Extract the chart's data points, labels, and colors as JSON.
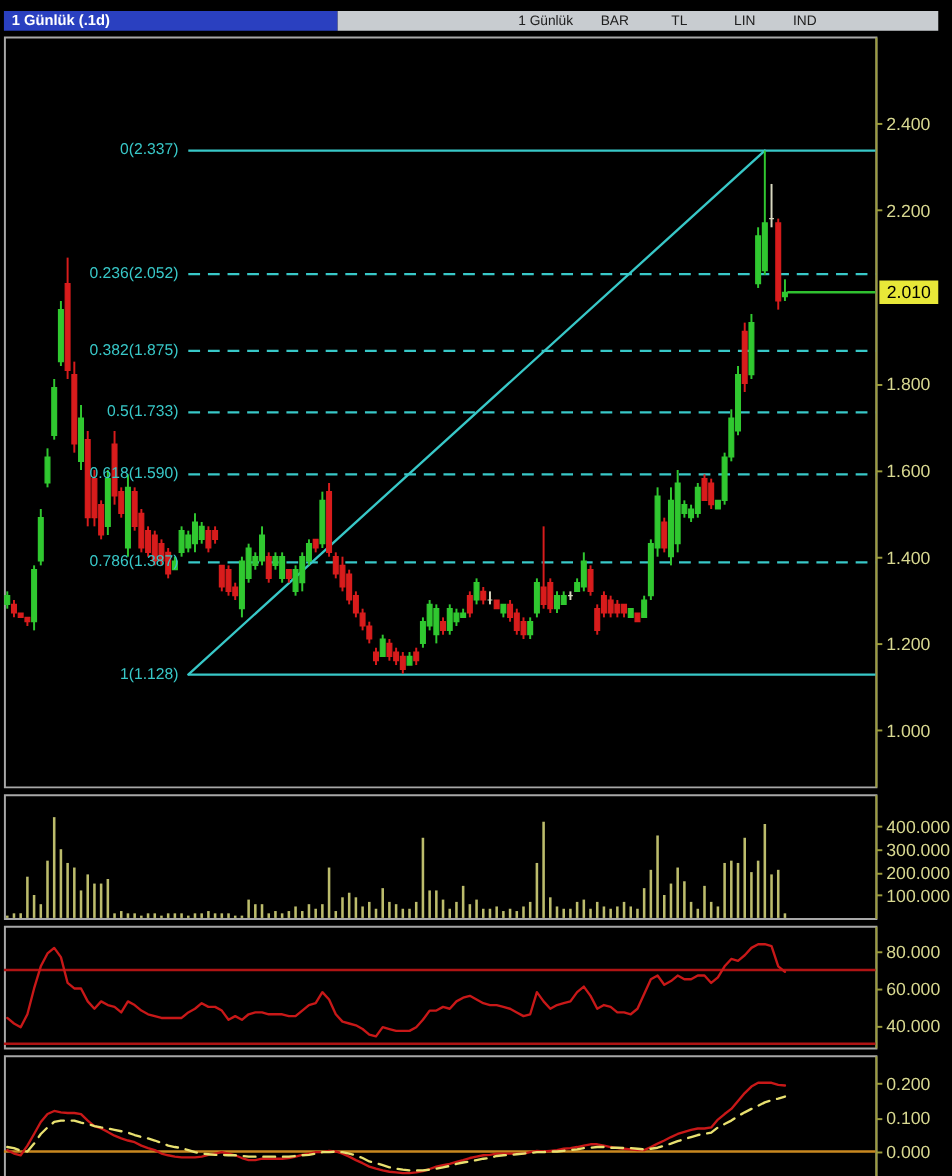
{
  "chart_data": [
    {
      "type": "candlestick",
      "title": "1 Günlük (.1d)",
      "annotations": [
        "1 Günlük",
        "BAR",
        "TL",
        "LIN",
        "IND"
      ],
      "tick_labels": "y",
      "ylim": [
        0.87,
        2.6
      ],
      "yticks": [
        {
          "value": 1,
          "label": "1.000"
        },
        {
          "value": 1.2,
          "label": "1.200"
        },
        {
          "value": 1.4,
          "label": "1.400"
        },
        {
          "value": 1.6,
          "label": "1.600"
        },
        {
          "value": 1.8,
          "label": "1.800"
        },
        {
          "value": 2.2,
          "label": "2.200"
        },
        {
          "value": 2.4,
          "label": "2.400"
        }
      ],
      "categories": [
        null,
        null,
        null,
        null,
        null,
        null,
        null,
        null,
        null,
        null,
        null,
        null,
        null,
        null,
        null,
        null,
        null,
        null,
        null,
        null,
        null,
        null,
        null,
        null,
        null,
        null,
        null,
        null,
        null,
        null,
        null,
        null,
        null,
        null,
        null,
        null,
        null,
        null,
        null,
        null,
        null,
        null,
        null,
        null,
        null,
        null,
        null,
        null,
        null,
        null,
        null,
        null,
        null,
        null,
        null,
        null,
        null,
        null,
        null,
        null,
        null,
        null,
        null,
        null,
        null,
        null,
        null,
        null,
        null,
        null,
        null,
        null,
        null,
        null,
        null,
        null,
        null,
        null,
        null,
        null,
        null,
        null,
        null,
        null,
        null,
        null,
        null,
        null,
        null,
        null,
        null,
        null,
        null,
        null,
        null,
        null,
        null,
        null,
        null,
        null,
        null,
        null,
        null,
        null,
        null,
        null,
        null,
        null,
        null,
        null,
        null,
        null,
        null,
        null,
        null,
        null,
        null,
        null,
        null,
        null,
        null,
        null,
        null,
        null,
        null,
        null,
        null,
        null,
        null,
        null
      ],
      "ohlc": [
        [
          1.29,
          1.32,
          1.28,
          1.31
        ],
        [
          1.29,
          1.3,
          1.26,
          1.27
        ],
        [
          1.27,
          1.27,
          1.26,
          1.26
        ],
        [
          1.26,
          1.26,
          1.24,
          1.25
        ],
        [
          1.25,
          1.38,
          1.23,
          1.37
        ],
        [
          1.39,
          1.51,
          1.38,
          1.49
        ],
        [
          1.57,
          1.65,
          1.56,
          1.63
        ],
        [
          1.68,
          1.81,
          1.67,
          1.79
        ],
        [
          1.85,
          1.99,
          1.84,
          1.97
        ],
        [
          2.03,
          2.09,
          1.81,
          1.83
        ],
        [
          1.82,
          1.85,
          1.64,
          1.66
        ],
        [
          1.62,
          1.75,
          1.6,
          1.72
        ],
        [
          1.67,
          1.69,
          1.47,
          1.49
        ],
        [
          1.58,
          1.6,
          1.47,
          1.49
        ],
        [
          1.52,
          1.53,
          1.44,
          1.45
        ],
        [
          1.47,
          1.6,
          1.45,
          1.58
        ],
        [
          1.66,
          1.69,
          1.52,
          1.54
        ],
        [
          1.55,
          1.56,
          1.49,
          1.5
        ],
        [
          1.42,
          1.59,
          1.4,
          1.56
        ],
        [
          1.55,
          1.56,
          1.46,
          1.47
        ],
        [
          1.5,
          1.51,
          1.41,
          1.42
        ],
        [
          1.46,
          1.47,
          1.4,
          1.41
        ],
        [
          1.45,
          1.46,
          1.38,
          1.39
        ],
        [
          1.43,
          1.44,
          1.38,
          1.39
        ],
        [
          1.41,
          1.42,
          1.35,
          1.36
        ],
        [
          1.37,
          1.4,
          1.37,
          1.39
        ],
        [
          1.41,
          1.47,
          1.4,
          1.46
        ],
        [
          1.42,
          1.46,
          1.41,
          1.45
        ],
        [
          1.43,
          1.5,
          1.41,
          1.48
        ],
        [
          1.44,
          1.48,
          1.43,
          1.47
        ],
        [
          1.46,
          1.47,
          1.41,
          1.42
        ],
        [
          1.46,
          1.47,
          1.43,
          1.44
        ],
        [
          1.38,
          1.38,
          1.32,
          1.33
        ],
        [
          1.37,
          1.38,
          1.31,
          1.32
        ],
        [
          1.33,
          1.34,
          1.3,
          1.31
        ],
        [
          1.28,
          1.4,
          1.26,
          1.39
        ],
        [
          1.35,
          1.43,
          1.34,
          1.42
        ],
        [
          1.38,
          1.41,
          1.37,
          1.4
        ],
        [
          1.39,
          1.47,
          1.38,
          1.45
        ],
        [
          1.4,
          1.41,
          1.34,
          1.35
        ],
        [
          1.38,
          1.41,
          1.37,
          1.4
        ],
        [
          1.35,
          1.41,
          1.34,
          1.4
        ],
        [
          1.37,
          1.37,
          1.34,
          1.35
        ],
        [
          1.32,
          1.38,
          1.31,
          1.37
        ],
        [
          1.34,
          1.41,
          1.32,
          1.4
        ],
        [
          1.39,
          1.44,
          1.38,
          1.43
        ],
        [
          1.44,
          1.44,
          1.41,
          1.42
        ],
        [
          1.43,
          1.55,
          1.42,
          1.53
        ],
        [
          1.55,
          1.57,
          1.4,
          1.41
        ],
        [
          1.4,
          1.41,
          1.35,
          1.36
        ],
        [
          1.38,
          1.4,
          1.32,
          1.33
        ],
        [
          1.36,
          1.37,
          1.29,
          1.3
        ],
        [
          1.31,
          1.32,
          1.26,
          1.27
        ],
        [
          1.27,
          1.28,
          1.23,
          1.24
        ],
        [
          1.24,
          1.25,
          1.2,
          1.21
        ],
        [
          1.18,
          1.19,
          1.15,
          1.16
        ],
        [
          1.17,
          1.22,
          1.17,
          1.21
        ],
        [
          1.2,
          1.21,
          1.16,
          1.17
        ],
        [
          1.18,
          1.19,
          1.15,
          1.16
        ],
        [
          1.17,
          1.18,
          1.13,
          1.14
        ],
        [
          1.15,
          1.18,
          1.15,
          1.17
        ],
        [
          1.18,
          1.19,
          1.15,
          1.16
        ],
        [
          1.2,
          1.26,
          1.19,
          1.25
        ],
        [
          1.24,
          1.3,
          1.23,
          1.29
        ],
        [
          1.22,
          1.29,
          1.2,
          1.28
        ],
        [
          1.25,
          1.26,
          1.22,
          1.23
        ],
        [
          1.23,
          1.29,
          1.22,
          1.28
        ],
        [
          1.25,
          1.28,
          1.24,
          1.27
        ],
        [
          1.26,
          1.28,
          1.26,
          1.27
        ],
        [
          1.31,
          1.32,
          1.26,
          1.27
        ],
        [
          1.3,
          1.35,
          1.29,
          1.34
        ],
        [
          1.32,
          1.33,
          1.29,
          1.3
        ],
        [
          1.3,
          1.32,
          1.29,
          1.3
        ],
        [
          1.3,
          1.3,
          1.28,
          1.28
        ],
        [
          1.27,
          1.29,
          1.26,
          1.29
        ],
        [
          1.29,
          1.3,
          1.25,
          1.26
        ],
        [
          1.27,
          1.28,
          1.22,
          1.23
        ],
        [
          1.25,
          1.26,
          1.21,
          1.22
        ],
        [
          1.22,
          1.26,
          1.21,
          1.25
        ],
        [
          1.27,
          1.35,
          1.26,
          1.34
        ],
        [
          1.33,
          1.47,
          1.28,
          1.29
        ],
        [
          1.34,
          1.35,
          1.27,
          1.28
        ],
        [
          1.28,
          1.32,
          1.27,
          1.31
        ],
        [
          1.29,
          1.32,
          1.29,
          1.31
        ],
        [
          1.31,
          1.32,
          1.3,
          1.31
        ],
        [
          1.32,
          1.35,
          1.32,
          1.34
        ],
        [
          1.33,
          1.41,
          1.32,
          1.39
        ],
        [
          1.37,
          1.38,
          1.31,
          1.32
        ],
        [
          1.28,
          1.29,
          1.22,
          1.23
        ],
        [
          1.31,
          1.32,
          1.26,
          1.27
        ],
        [
          1.3,
          1.31,
          1.26,
          1.27
        ],
        [
          1.29,
          1.3,
          1.26,
          1.27
        ],
        [
          1.29,
          1.29,
          1.26,
          1.27
        ],
        [
          1.26,
          1.28,
          1.26,
          1.28
        ],
        [
          1.27,
          1.27,
          1.25,
          1.25
        ],
        [
          1.26,
          1.31,
          1.26,
          1.3
        ],
        [
          1.31,
          1.44,
          1.3,
          1.43
        ],
        [
          1.42,
          1.56,
          1.4,
          1.54
        ],
        [
          1.48,
          1.49,
          1.41,
          1.42
        ],
        [
          1.4,
          1.56,
          1.38,
          1.53
        ],
        [
          1.43,
          1.6,
          1.41,
          1.57
        ],
        [
          1.5,
          1.53,
          1.49,
          1.52
        ],
        [
          1.49,
          1.52,
          1.48,
          1.51
        ],
        [
          1.5,
          1.57,
          1.49,
          1.56
        ],
        [
          1.58,
          1.59,
          1.53,
          1.53
        ],
        [
          1.57,
          1.58,
          1.51,
          1.52
        ],
        [
          1.51,
          1.53,
          1.51,
          1.53
        ],
        [
          1.53,
          1.64,
          1.52,
          1.63
        ],
        [
          1.63,
          1.74,
          1.62,
          1.72
        ],
        [
          1.69,
          1.84,
          1.68,
          1.82
        ],
        [
          1.92,
          1.94,
          1.78,
          1.8
        ],
        [
          1.82,
          1.96,
          1.81,
          1.94
        ],
        [
          2.03,
          2.16,
          2.02,
          2.14
        ],
        [
          2.06,
          2.337,
          2.05,
          2.17
        ],
        [
          2.18,
          2.26,
          2.16,
          2.18
        ],
        [
          2.17,
          2.18,
          1.97,
          1.99
        ],
        [
          2.0,
          2.04,
          1.99,
          2.01
        ],
        null,
        null,
        null,
        null,
        null,
        null,
        null,
        null,
        null,
        null,
        null,
        null,
        null
      ],
      "colors": [
        "#30c830",
        "#d81c1c",
        "#d81c1c",
        "#d81c1c",
        "#30c830",
        "#30c830",
        "#30c830",
        "#30c830",
        "#30c830",
        "#d81c1c",
        "#d81c1c",
        "#30c830",
        "#d81c1c",
        "#d81c1c",
        "#d81c1c",
        "#30c830",
        "#d81c1c",
        "#d81c1c",
        "#30c830",
        "#d81c1c",
        "#d81c1c",
        "#d81c1c",
        "#d81c1c",
        "#d81c1c",
        "#d81c1c",
        "#30c830",
        "#30c830",
        "#30c830",
        "#30c830",
        "#30c830",
        "#d81c1c",
        "#d81c1c",
        "#d81c1c",
        "#d81c1c",
        "#d81c1c",
        "#30c830",
        "#30c830",
        "#30c830",
        "#30c830",
        "#d81c1c",
        "#30c830",
        "#30c830",
        "#d81c1c",
        "#30c830",
        "#30c830",
        "#30c830",
        "#d81c1c",
        "#30c830",
        "#d81c1c",
        "#d81c1c",
        "#d81c1c",
        "#d81c1c",
        "#d81c1c",
        "#d81c1c",
        "#d81c1c",
        "#d81c1c",
        "#30c830",
        "#d81c1c",
        "#d81c1c",
        "#d81c1c",
        "#30c830",
        "#d81c1c",
        "#30c830",
        "#30c830",
        "#30c830",
        "#d81c1c",
        "#30c830",
        "#30c830",
        "#30c830",
        "#d81c1c",
        "#30c830",
        "#d81c1c",
        "#d8d8c0",
        "#d81c1c",
        "#30c830",
        "#d81c1c",
        "#d81c1c",
        "#d81c1c",
        "#30c830",
        "#30c830",
        "#d81c1c",
        "#d81c1c",
        "#30c830",
        "#30c830",
        "#d8d8c0",
        "#30c830",
        "#30c830",
        "#d81c1c",
        "#d81c1c",
        "#d81c1c",
        "#d81c1c",
        "#d81c1c",
        "#d81c1c",
        "#30c830",
        "#d81c1c",
        "#30c830",
        "#30c830",
        "#30c830",
        "#d81c1c",
        "#30c830",
        "#30c830",
        "#30c830",
        "#30c830",
        "#30c830",
        "#d81c1c",
        "#d81c1c",
        "#30c830",
        "#30c830",
        "#30c830",
        "#30c830",
        "#d81c1c",
        "#30c830",
        "#30c830",
        "#30c830",
        "#d8d8c0",
        "#d81c1c",
        "#30c830",
        null,
        null,
        null,
        null,
        null,
        null,
        null,
        null,
        null,
        null,
        null,
        null,
        null
      ],
      "series": [
        {
          "type": "line",
          "color": "#38c8c8",
          "values": [
            null,
            null,
            null,
            null,
            null,
            null,
            null,
            null,
            null,
            null,
            null,
            null,
            null,
            null,
            null,
            null,
            null,
            null,
            null,
            null,
            null,
            null,
            null,
            null,
            null,
            null,
            null,
            1.128,
            null,
            null,
            null,
            null,
            null,
            null,
            null,
            null,
            null,
            null,
            null,
            null,
            null,
            null,
            null,
            null,
            null,
            null,
            null,
            null,
            null,
            null,
            null,
            null,
            null,
            null,
            null,
            null,
            null,
            null,
            null,
            null,
            null,
            null,
            null,
            null,
            null,
            null,
            null,
            null,
            null,
            null,
            null,
            null,
            null,
            null,
            null,
            null,
            null,
            null,
            null,
            null,
            null,
            null,
            null,
            null,
            null,
            null,
            null,
            null,
            null,
            null,
            null,
            null,
            null,
            null,
            null,
            null,
            null,
            null,
            null,
            null,
            null,
            null,
            null,
            null,
            null,
            null,
            null,
            null,
            null,
            null,
            null,
            null,
            null,
            2.337,
            null,
            null,
            null,
            null,
            null,
            null,
            null,
            null,
            null,
            null,
            null,
            null,
            null,
            null,
            null,
            null
          ]
        }
      ],
      "ref_lines": [
        {
          "axis": "y",
          "value": 2.337,
          "label": "0(2.337)",
          "color": "#38c8c8",
          "line_style": "solid"
        },
        {
          "axis": "y",
          "value": 2.052,
          "label": "0.236(2.052)",
          "color": "#38c8c8",
          "line_style": "dashed"
        },
        {
          "axis": "y",
          "value": 1.875,
          "label": "0.382(1.875)",
          "color": "#38c8c8",
          "line_style": "dashed"
        },
        {
          "axis": "y",
          "value": 1.733,
          "label": "0.5(1.733)",
          "color": "#38c8c8",
          "line_style": "dashed"
        },
        {
          "axis": "y",
          "value": 1.59,
          "label": "0.618(1.590)",
          "color": "#38c8c8",
          "line_style": "dashed"
        },
        {
          "axis": "y",
          "value": 1.387,
          "label": "0.786(1.387)",
          "color": "#38c8c8",
          "line_style": "dashed"
        },
        {
          "axis": "y",
          "value": 1.128,
          "label": "1(1.128)",
          "color": "#38c8c8",
          "line_style": "solid"
        },
        {
          "axis": "y",
          "value": 2.01,
          "label": "2.010",
          "color": "#30c030",
          "line_style": "solid"
        }
      ]
    },
    {
      "type": "bar",
      "tick_labels": "y",
      "color": "#bcbc6c",
      "ylim": [
        0,
        540
      ],
      "yticks": [
        {
          "value": 100,
          "label": "100.000"
        },
        {
          "value": 200,
          "label": "200.000"
        },
        {
          "value": 300,
          "label": "300.000"
        },
        {
          "value": 400,
          "label": "400.000"
        }
      ],
      "categories": [
        null,
        null,
        null,
        null,
        null,
        null,
        null,
        null,
        null,
        null,
        null,
        null,
        null,
        null,
        null,
        null,
        null,
        null,
        null,
        null,
        null,
        null,
        null,
        null,
        null,
        null,
        null,
        null,
        null,
        null,
        null,
        null,
        null,
        null,
        null,
        null,
        null,
        null,
        null,
        null,
        null,
        null,
        null,
        null,
        null,
        null,
        null,
        null,
        null,
        null,
        null,
        null,
        null,
        null,
        null,
        null,
        null,
        null,
        null,
        null,
        null,
        null,
        null,
        null,
        null,
        null,
        null,
        null,
        null,
        null,
        null,
        null,
        null,
        null,
        null,
        null,
        null,
        null,
        null,
        null,
        null,
        null,
        null,
        null,
        null,
        null,
        null,
        null,
        null,
        null,
        null,
        null,
        null,
        null,
        null,
        null,
        null,
        null,
        null,
        null,
        null,
        null,
        null,
        null,
        null,
        null,
        null,
        null,
        null,
        null,
        null,
        null,
        null,
        null,
        null,
        null,
        null,
        null,
        null,
        null,
        null,
        null,
        null,
        null,
        null,
        null,
        null,
        null,
        null,
        null
      ],
      "values": [
        10,
        20,
        20,
        180,
        100,
        60,
        250,
        440,
        300,
        240,
        220,
        120,
        190,
        150,
        150,
        170,
        20,
        30,
        20,
        20,
        10,
        20,
        20,
        10,
        20,
        20,
        20,
        10,
        20,
        20,
        30,
        20,
        20,
        20,
        10,
        10,
        80,
        60,
        60,
        20,
        30,
        20,
        30,
        50,
        30,
        60,
        40,
        60,
        220,
        30,
        90,
        110,
        90,
        50,
        70,
        40,
        130,
        70,
        60,
        40,
        40,
        70,
        350,
        120,
        120,
        80,
        40,
        70,
        140,
        60,
        80,
        40,
        40,
        50,
        30,
        40,
        30,
        50,
        70,
        240,
        420,
        90,
        50,
        40,
        40,
        70,
        80,
        40,
        70,
        50,
        40,
        50,
        70,
        50,
        40,
        130,
        210,
        360,
        100,
        150,
        220,
        160,
        70,
        40,
        140,
        70,
        50,
        240,
        250,
        240,
        350,
        200,
        250,
        410,
        190,
        210,
        20,
        null,
        null,
        null,
        null,
        null,
        null,
        null,
        null,
        null,
        null,
        null,
        null,
        null
      ]
    },
    {
      "type": "line",
      "tick_labels": "y",
      "color": "#c81818",
      "ylim": [
        28,
        94
      ],
      "yticks": [
        {
          "value": 40,
          "label": "40.000"
        },
        {
          "value": 60,
          "label": "60.000"
        },
        {
          "value": 80,
          "label": "80.000"
        }
      ],
      "categories": [
        null,
        null,
        null,
        null,
        null,
        null,
        null,
        null,
        null,
        null,
        null,
        null,
        null,
        null,
        null,
        null,
        null,
        null,
        null,
        null,
        null,
        null,
        null,
        null,
        null,
        null,
        null,
        null,
        null,
        null,
        null,
        null,
        null,
        null,
        null,
        null,
        null,
        null,
        null,
        null,
        null,
        null,
        null,
        null,
        null,
        null,
        null,
        null,
        null,
        null,
        null,
        null,
        null,
        null,
        null,
        null,
        null,
        null,
        null,
        null,
        null,
        null,
        null,
        null,
        null,
        null,
        null,
        null,
        null,
        null,
        null,
        null,
        null,
        null,
        null,
        null,
        null,
        null,
        null,
        null,
        null,
        null,
        null,
        null,
        null,
        null,
        null,
        null,
        null,
        null,
        null,
        null,
        null,
        null,
        null,
        null,
        null,
        null,
        null,
        null,
        null,
        null,
        null,
        null,
        null,
        null,
        null,
        null,
        null,
        null,
        null,
        null,
        null,
        null,
        null,
        null,
        null,
        null,
        null,
        null,
        null,
        null,
        null,
        null,
        null,
        null,
        null,
        null,
        null,
        null
      ],
      "values": [
        44,
        41,
        39,
        46,
        60,
        72,
        79,
        82,
        77,
        63,
        60,
        60,
        53,
        49,
        53,
        51,
        50,
        47,
        53,
        51,
        48,
        46,
        45,
        44,
        44,
        44,
        44,
        47,
        49,
        52,
        50,
        50,
        48,
        43,
        45,
        43,
        46,
        47,
        47,
        46,
        46,
        46,
        45,
        45,
        48,
        51,
        52,
        58,
        54,
        46,
        42,
        41,
        40,
        38,
        35,
        34,
        39,
        38,
        37,
        37,
        37,
        39,
        43,
        48,
        48,
        50,
        49,
        53,
        55,
        56,
        54,
        52,
        51,
        51,
        50,
        49,
        47,
        45,
        46,
        58,
        53,
        49,
        51,
        52,
        53,
        58,
        61,
        56,
        49,
        51,
        50,
        47,
        47,
        46,
        49,
        57,
        65,
        67,
        62,
        64,
        67,
        65,
        65,
        67,
        67,
        63,
        66,
        72,
        76,
        75,
        78,
        82,
        84,
        84,
        83,
        72,
        69,
        null,
        null,
        null,
        null,
        null,
        null,
        null,
        null,
        null,
        null,
        null,
        null,
        null
      ],
      "ref_lines": [
        {
          "axis": "y",
          "value": 70,
          "color": "#b01414"
        },
        {
          "axis": "y",
          "value": 30,
          "color": "#b01414"
        }
      ]
    },
    {
      "type": "line",
      "tick_labels": "y",
      "ylim": [
        -0.08,
        0.28
      ],
      "yticks": [
        {
          "value": 0,
          "label": "0.000"
        },
        {
          "value": 0.1,
          "label": "0.100"
        },
        {
          "value": 0.2,
          "label": "0.200"
        }
      ],
      "categories": [
        null,
        null,
        null,
        null,
        null,
        null,
        null,
        null,
        null,
        null,
        null,
        null,
        null,
        null,
        null,
        null,
        null,
        null,
        null,
        null,
        null,
        null,
        null,
        null,
        null,
        null,
        null,
        null,
        null,
        null,
        null,
        null,
        null,
        null,
        null,
        null,
        null,
        null,
        null,
        null,
        null,
        null,
        null,
        null,
        null,
        null,
        null,
        null,
        null,
        null,
        null,
        null,
        null,
        null,
        null,
        null,
        null,
        null,
        null,
        null,
        null,
        null,
        null,
        null,
        null,
        null,
        null,
        null,
        null,
        null,
        null,
        null,
        null,
        null,
        null,
        null,
        null,
        null,
        null,
        null,
        null,
        null,
        null,
        null,
        null,
        null,
        null,
        null,
        null,
        null,
        null,
        null,
        null,
        null,
        null,
        null,
        null,
        null,
        null,
        null,
        null,
        null,
        null,
        null,
        null,
        null,
        null,
        null,
        null,
        null,
        null,
        null,
        null,
        null,
        null,
        null,
        null,
        null,
        null,
        null,
        null,
        null,
        null,
        null,
        null,
        null,
        null,
        null,
        null,
        null
      ],
      "series": [
        {
          "color": "#c81818",
          "line_style": "solid",
          "values": [
            0.004,
            -0.006,
            -0.011,
            0.017,
            0.051,
            0.086,
            0.109,
            0.118,
            0.114,
            0.112,
            0.112,
            0.109,
            0.09,
            0.074,
            0.067,
            0.057,
            0.046,
            0.038,
            0.032,
            0.027,
            0.017,
            0.01,
            0.004,
            -0.006,
            -0.011,
            -0.015,
            -0.017,
            -0.017,
            -0.017,
            -0.015,
            -0.01,
            -0.006,
            -0.002,
            -0.006,
            -0.011,
            -0.019,
            -0.025,
            -0.025,
            -0.021,
            -0.021,
            -0.021,
            -0.021,
            -0.019,
            -0.015,
            -0.01,
            -0.006,
            -0.002,
            -0.002,
            0.002,
            0,
            -0.006,
            -0.015,
            -0.025,
            -0.034,
            -0.044,
            -0.05,
            -0.055,
            -0.059,
            -0.061,
            -0.063,
            -0.063,
            -0.061,
            -0.057,
            -0.051,
            -0.044,
            -0.04,
            -0.036,
            -0.03,
            -0.025,
            -0.019,
            -0.015,
            -0.011,
            -0.01,
            -0.006,
            -0.006,
            -0.006,
            -0.006,
            -0.006,
            -0.002,
            0.002,
            0,
            0.002,
            0.004,
            0.008,
            0.01,
            0.013,
            0.017,
            0.021,
            0.021,
            0.017,
            0.013,
            0.01,
            0.008,
            0.006,
            0.004,
            0.004,
            0.013,
            0.023,
            0.032,
            0.042,
            0.051,
            0.057,
            0.063,
            0.067,
            0.067,
            0.07,
            0.093,
            0.109,
            0.124,
            0.147,
            0.17,
            0.189,
            0.2,
            0.2,
            0.2,
            0.194,
            0.192,
            null,
            null,
            null,
            null,
            null,
            null,
            null,
            null,
            null,
            null,
            null,
            null,
            null
          ]
        },
        {
          "color": "#e8e070",
          "line_style": "dashed",
          "values": [
            0.013,
            0.01,
            0.002,
            0,
            0.023,
            0.051,
            0.07,
            0.086,
            0.09,
            0.09,
            0.09,
            0.084,
            0.08,
            0.074,
            0.07,
            0.067,
            0.063,
            0.059,
            0.055,
            0.048,
            0.042,
            0.038,
            0.032,
            0.025,
            0.017,
            0.013,
            0.01,
            0.004,
            -0.002,
            -0.006,
            -0.008,
            -0.01,
            -0.01,
            -0.011,
            -0.011,
            -0.013,
            -0.015,
            -0.015,
            -0.015,
            -0.015,
            -0.015,
            -0.015,
            -0.015,
            -0.013,
            -0.011,
            -0.01,
            -0.006,
            -0.002,
            -0.002,
            0,
            -0.002,
            -0.006,
            -0.011,
            -0.019,
            -0.029,
            -0.034,
            -0.04,
            -0.046,
            -0.05,
            -0.053,
            -0.055,
            -0.055,
            -0.055,
            -0.053,
            -0.05,
            -0.046,
            -0.042,
            -0.036,
            -0.032,
            -0.029,
            -0.025,
            -0.021,
            -0.019,
            -0.013,
            -0.011,
            -0.01,
            -0.008,
            -0.006,
            -0.004,
            -0.002,
            -0.002,
            0,
            0,
            0.002,
            0.004,
            0.006,
            0.01,
            0.011,
            0.013,
            0.013,
            0.011,
            0.011,
            0.01,
            0.01,
            0.008,
            0.006,
            0.008,
            0.011,
            0.017,
            0.023,
            0.03,
            0.036,
            0.042,
            0.048,
            0.051,
            0.055,
            0.07,
            0.08,
            0.09,
            0.103,
            0.114,
            0.124,
            0.133,
            0.143,
            0.149,
            0.154,
            0.16,
            null,
            null,
            null,
            null,
            null,
            null,
            null,
            null,
            null,
            null,
            null,
            null,
            null
          ]
        }
      ],
      "ref_lines": [
        {
          "axis": "y",
          "value": 0,
          "color": "#c88820"
        }
      ]
    }
  ]
}
